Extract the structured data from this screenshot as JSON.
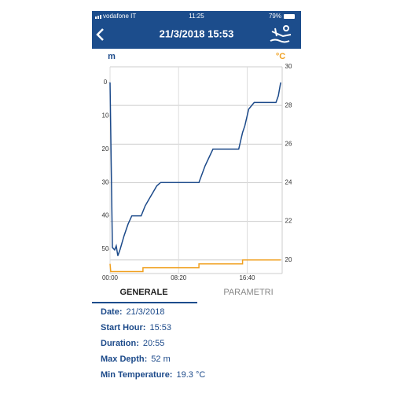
{
  "status_bar": {
    "carrier": "vodafone IT",
    "time": "11:25",
    "battery": "79%"
  },
  "header": {
    "title": "21/3/2018 15:53"
  },
  "chart_data": {
    "type": "line",
    "y_label": "m",
    "y2_label": "°C",
    "xlim": [
      0,
      1255
    ],
    "xticks": [
      {
        "value": 0,
        "label": "00:00"
      },
      {
        "value": 500,
        "label": "08:20"
      },
      {
        "value": 1000,
        "label": "16:40"
      }
    ],
    "ylim": [
      -4.7,
      57.3
    ],
    "y_inverted": true,
    "yticks": [
      0,
      10,
      20,
      30,
      40,
      50
    ],
    "y2lim": [
      19.3,
      30
    ],
    "y2ticks": [
      20,
      22,
      24,
      26,
      28,
      30
    ],
    "grid": "y2",
    "y_color": "#1c4a8a",
    "y2_color": "#f0a020",
    "series": [
      {
        "color": "#1c4a8a",
        "x": [
          0,
          17,
          34,
          45,
          57,
          74,
          102,
          131,
          159,
          227,
          256,
          284,
          313,
          341,
          369,
          648,
          693,
          750,
          938,
          966,
          983,
          1011,
          1051,
          1210,
          1227,
          1244
        ],
        "values": [
          0,
          49.5,
          50.2,
          49,
          52,
          50,
          46,
          42.5,
          40,
          40,
          37,
          35,
          33,
          31,
          30,
          30,
          25,
          20,
          20,
          15,
          13,
          8,
          6,
          6,
          4,
          0
        ]
      },
      {
        "color": "#f0a020",
        "axis": "y2",
        "x": [
          0,
          5,
          240,
          240,
          648,
          648,
          966,
          966,
          1244
        ],
        "values": [
          19.8,
          19.4,
          19.4,
          19.6,
          19.6,
          19.8,
          19.8,
          20.0,
          20.0
        ]
      }
    ]
  },
  "tabs": [
    "GENERALE",
    "PARAMETRI"
  ],
  "details": [
    {
      "label": "Date:",
      "value": "21/3/2018"
    },
    {
      "label": "Start Hour:",
      "value": "15:53"
    },
    {
      "label": "Duration:",
      "value": "20:55"
    },
    {
      "label": "Max Depth:",
      "value": "52 m"
    },
    {
      "label": "Min Temperature:",
      "value": "19.3 °C"
    }
  ]
}
